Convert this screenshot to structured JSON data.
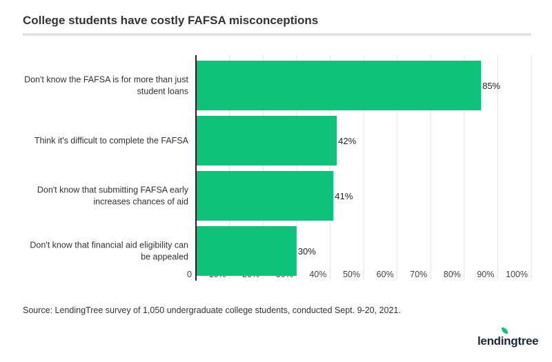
{
  "chart_data": {
    "type": "bar",
    "orientation": "horizontal",
    "title": "College students have costly FAFSA misconceptions",
    "categories": [
      [
        "Don't know the FAFSA is for more than just",
        "student loans"
      ],
      [
        "Think it's difficult to complete the FAFSA"
      ],
      [
        "Don't know that submitting FAFSA early",
        "increases chances of aid"
      ],
      [
        "Don't know that financial aid eligibility can",
        "be appealed"
      ]
    ],
    "values": [
      85,
      42,
      41,
      30
    ],
    "data_labels": [
      "85%",
      "42%",
      "41%",
      "30%"
    ],
    "xlim": [
      0,
      100
    ],
    "x_ticks": [
      0,
      10,
      20,
      30,
      40,
      50,
      60,
      70,
      80,
      90,
      100
    ],
    "x_tick_labels": [
      "0",
      "10%",
      "20%",
      "30%",
      "40%",
      "50%",
      "60%",
      "70%",
      "80%",
      "90%",
      "100%"
    ],
    "grid": true,
    "bar_color": "#0ec27a"
  },
  "source": "Source: LendingTree survey of 1,050 undergraduate college students, conducted Sept. 9-20, 2021.",
  "logo": "lendingtree"
}
